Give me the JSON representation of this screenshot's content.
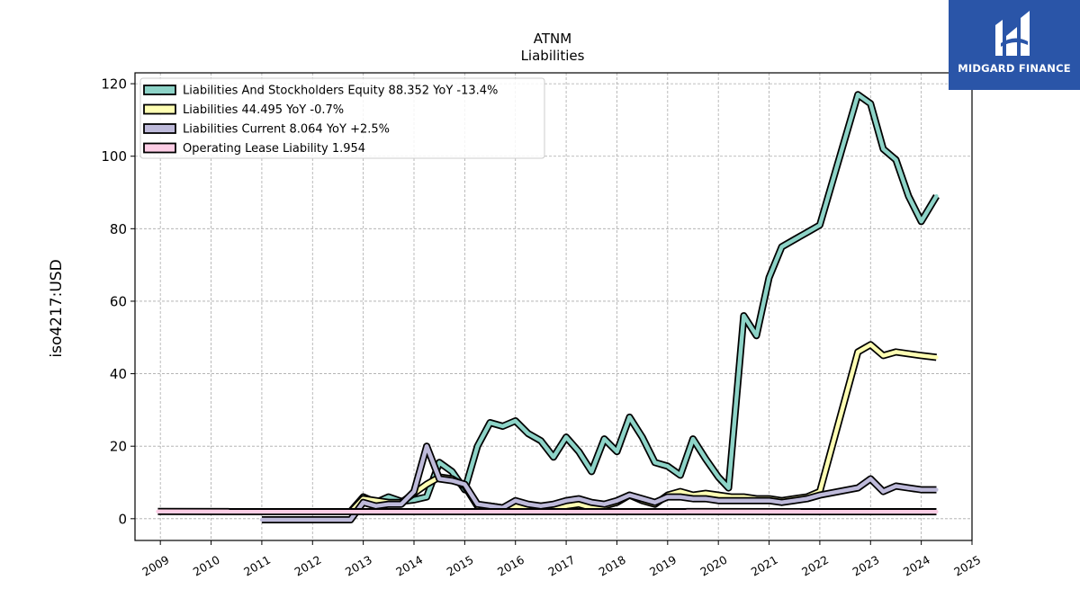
{
  "chart_data": {
    "type": "line",
    "title": "ATNM",
    "subtitle": "Liabilities",
    "ylabel": "iso4217:USD",
    "xlabel": "",
    "xlim": [
      2008.5,
      2025
    ],
    "ylim": [
      -6,
      123
    ],
    "x_ticks": [
      "2009",
      "2010",
      "2011",
      "2012",
      "2013",
      "2014",
      "2015",
      "2016",
      "2017",
      "2018",
      "2019",
      "2020",
      "2021",
      "2022",
      "2023",
      "2024",
      "2025"
    ],
    "y_ticks": [
      0,
      20,
      40,
      60,
      80,
      100,
      120
    ],
    "grid": true,
    "legend_position": "top-left",
    "series": [
      {
        "name": "Liabilities And Stockholders Equity",
        "legend_label": "Liabilities And Stockholders Equity  88.352 YoY -13.4%",
        "color": "#8dd3c7",
        "points": [
          [
            2012.75,
            2.0
          ],
          [
            2013.0,
            6.0
          ],
          [
            2013.25,
            4.5
          ],
          [
            2013.5,
            6.0
          ],
          [
            2013.75,
            4.8
          ],
          [
            2014.0,
            5.2
          ],
          [
            2014.25,
            6.0
          ],
          [
            2014.5,
            15.5
          ],
          [
            2014.75,
            13.0
          ],
          [
            2015.0,
            8.0
          ],
          [
            2015.25,
            20.0
          ],
          [
            2015.5,
            26.5
          ],
          [
            2015.75,
            25.5
          ],
          [
            2016.0,
            27.0
          ],
          [
            2016.25,
            23.5
          ],
          [
            2016.5,
            21.5
          ],
          [
            2016.75,
            17.0
          ],
          [
            2017.0,
            22.5
          ],
          [
            2017.25,
            18.5
          ],
          [
            2017.5,
            13.0
          ],
          [
            2017.75,
            22.0
          ],
          [
            2018.0,
            18.5
          ],
          [
            2018.25,
            28.0
          ],
          [
            2018.5,
            22.5
          ],
          [
            2018.75,
            15.5
          ],
          [
            2019.0,
            14.5
          ],
          [
            2019.25,
            12.0
          ],
          [
            2019.5,
            22.0
          ],
          [
            2019.75,
            16.5
          ],
          [
            2020.0,
            11.5
          ],
          [
            2020.2,
            8.5
          ],
          [
            2020.5,
            56.0
          ],
          [
            2020.75,
            50.5
          ],
          [
            2021.0,
            66.5
          ],
          [
            2021.25,
            75.0
          ],
          [
            2021.5,
            77.0
          ],
          [
            2021.75,
            79.0
          ],
          [
            2022.0,
            81.0
          ],
          [
            2022.75,
            117.0
          ],
          [
            2023.0,
            114.5
          ],
          [
            2023.25,
            102.0
          ],
          [
            2023.5,
            99.0
          ],
          [
            2023.75,
            89.0
          ],
          [
            2024.0,
            82.0
          ],
          [
            2024.3,
            89.0
          ]
        ]
      },
      {
        "name": "Liabilities",
        "legend_label": "Liabilities  44.495 YoY -0.7%",
        "color": "#ffffb3",
        "points": [
          [
            2012.75,
            1.8
          ],
          [
            2013.0,
            5.5
          ],
          [
            2013.25,
            5.0
          ],
          [
            2013.5,
            4.5
          ],
          [
            2013.75,
            4.5
          ],
          [
            2014.0,
            7.0
          ],
          [
            2014.25,
            9.5
          ],
          [
            2014.5,
            11.5
          ],
          [
            2014.75,
            11.0
          ],
          [
            2015.0,
            9.0
          ],
          [
            2015.25,
            3.5
          ],
          [
            2015.5,
            3.5
          ],
          [
            2015.75,
            3.0
          ],
          [
            2016.0,
            3.5
          ],
          [
            2016.25,
            3.0
          ],
          [
            2016.5,
            3.0
          ],
          [
            2016.75,
            3.0
          ],
          [
            2017.0,
            3.5
          ],
          [
            2017.25,
            4.0
          ],
          [
            2017.5,
            3.0
          ],
          [
            2017.75,
            3.5
          ],
          [
            2018.0,
            4.5
          ],
          [
            2018.25,
            6.5
          ],
          [
            2018.5,
            5.0
          ],
          [
            2018.75,
            4.0
          ],
          [
            2019.0,
            6.5
          ],
          [
            2019.25,
            7.5
          ],
          [
            2019.5,
            6.5
          ],
          [
            2019.75,
            7.0
          ],
          [
            2020.0,
            6.5
          ],
          [
            2020.25,
            6.0
          ],
          [
            2020.5,
            6.0
          ],
          [
            2020.75,
            5.5
          ],
          [
            2021.0,
            5.5
          ],
          [
            2021.25,
            5.0
          ],
          [
            2021.5,
            5.5
          ],
          [
            2021.75,
            6.0
          ],
          [
            2022.0,
            7.5
          ],
          [
            2022.75,
            46.0
          ],
          [
            2023.0,
            48.0
          ],
          [
            2023.25,
            45.0
          ],
          [
            2023.5,
            46.0
          ],
          [
            2023.75,
            45.5
          ],
          [
            2024.0,
            45.0
          ],
          [
            2024.3,
            44.5
          ]
        ]
      },
      {
        "name": "Liabilities Current",
        "legend_label": "Liabilities Current  8.064 YoY +2.5%",
        "color": "#bebada",
        "points": [
          [
            2011.0,
            -0.3
          ],
          [
            2012.75,
            -0.3
          ],
          [
            2013.0,
            4.5
          ],
          [
            2013.25,
            3.5
          ],
          [
            2013.5,
            4.0
          ],
          [
            2013.75,
            4.0
          ],
          [
            2014.0,
            7.5
          ],
          [
            2014.25,
            20.0
          ],
          [
            2014.5,
            11.0
          ],
          [
            2014.75,
            10.5
          ],
          [
            2015.0,
            9.5
          ],
          [
            2015.25,
            4.0
          ],
          [
            2015.5,
            3.5
          ],
          [
            2015.75,
            3.0
          ],
          [
            2016.0,
            5.0
          ],
          [
            2016.25,
            4.0
          ],
          [
            2016.5,
            3.5
          ],
          [
            2016.75,
            4.0
          ],
          [
            2017.0,
            5.0
          ],
          [
            2017.25,
            5.5
          ],
          [
            2017.5,
            4.5
          ],
          [
            2017.75,
            4.0
          ],
          [
            2018.0,
            5.0
          ],
          [
            2018.25,
            6.5
          ],
          [
            2018.5,
            5.5
          ],
          [
            2018.75,
            4.5
          ],
          [
            2019.0,
            6.0
          ],
          [
            2019.25,
            6.0
          ],
          [
            2019.5,
            5.5
          ],
          [
            2019.75,
            5.5
          ],
          [
            2020.0,
            5.0
          ],
          [
            2020.25,
            5.0
          ],
          [
            2020.5,
            5.0
          ],
          [
            2020.75,
            5.0
          ],
          [
            2021.0,
            5.0
          ],
          [
            2021.25,
            4.5
          ],
          [
            2021.5,
            5.0
          ],
          [
            2021.75,
            5.5
          ],
          [
            2022.0,
            6.5
          ],
          [
            2022.75,
            8.5
          ],
          [
            2023.0,
            11.0
          ],
          [
            2023.25,
            7.5
          ],
          [
            2023.5,
            9.0
          ],
          [
            2023.75,
            8.5
          ],
          [
            2024.0,
            8.0
          ],
          [
            2024.3,
            8.0
          ]
        ]
      },
      {
        "name": "Operating Lease Liability",
        "legend_label": "Operating Lease Liability  1.954",
        "color": "#fccde5",
        "points": [
          [
            2008.95,
            2.0
          ],
          [
            2024.3,
            1.95
          ]
        ]
      }
    ]
  },
  "logo": {
    "text": "MIDGARD FINANCE",
    "color": "#2a55a8"
  }
}
